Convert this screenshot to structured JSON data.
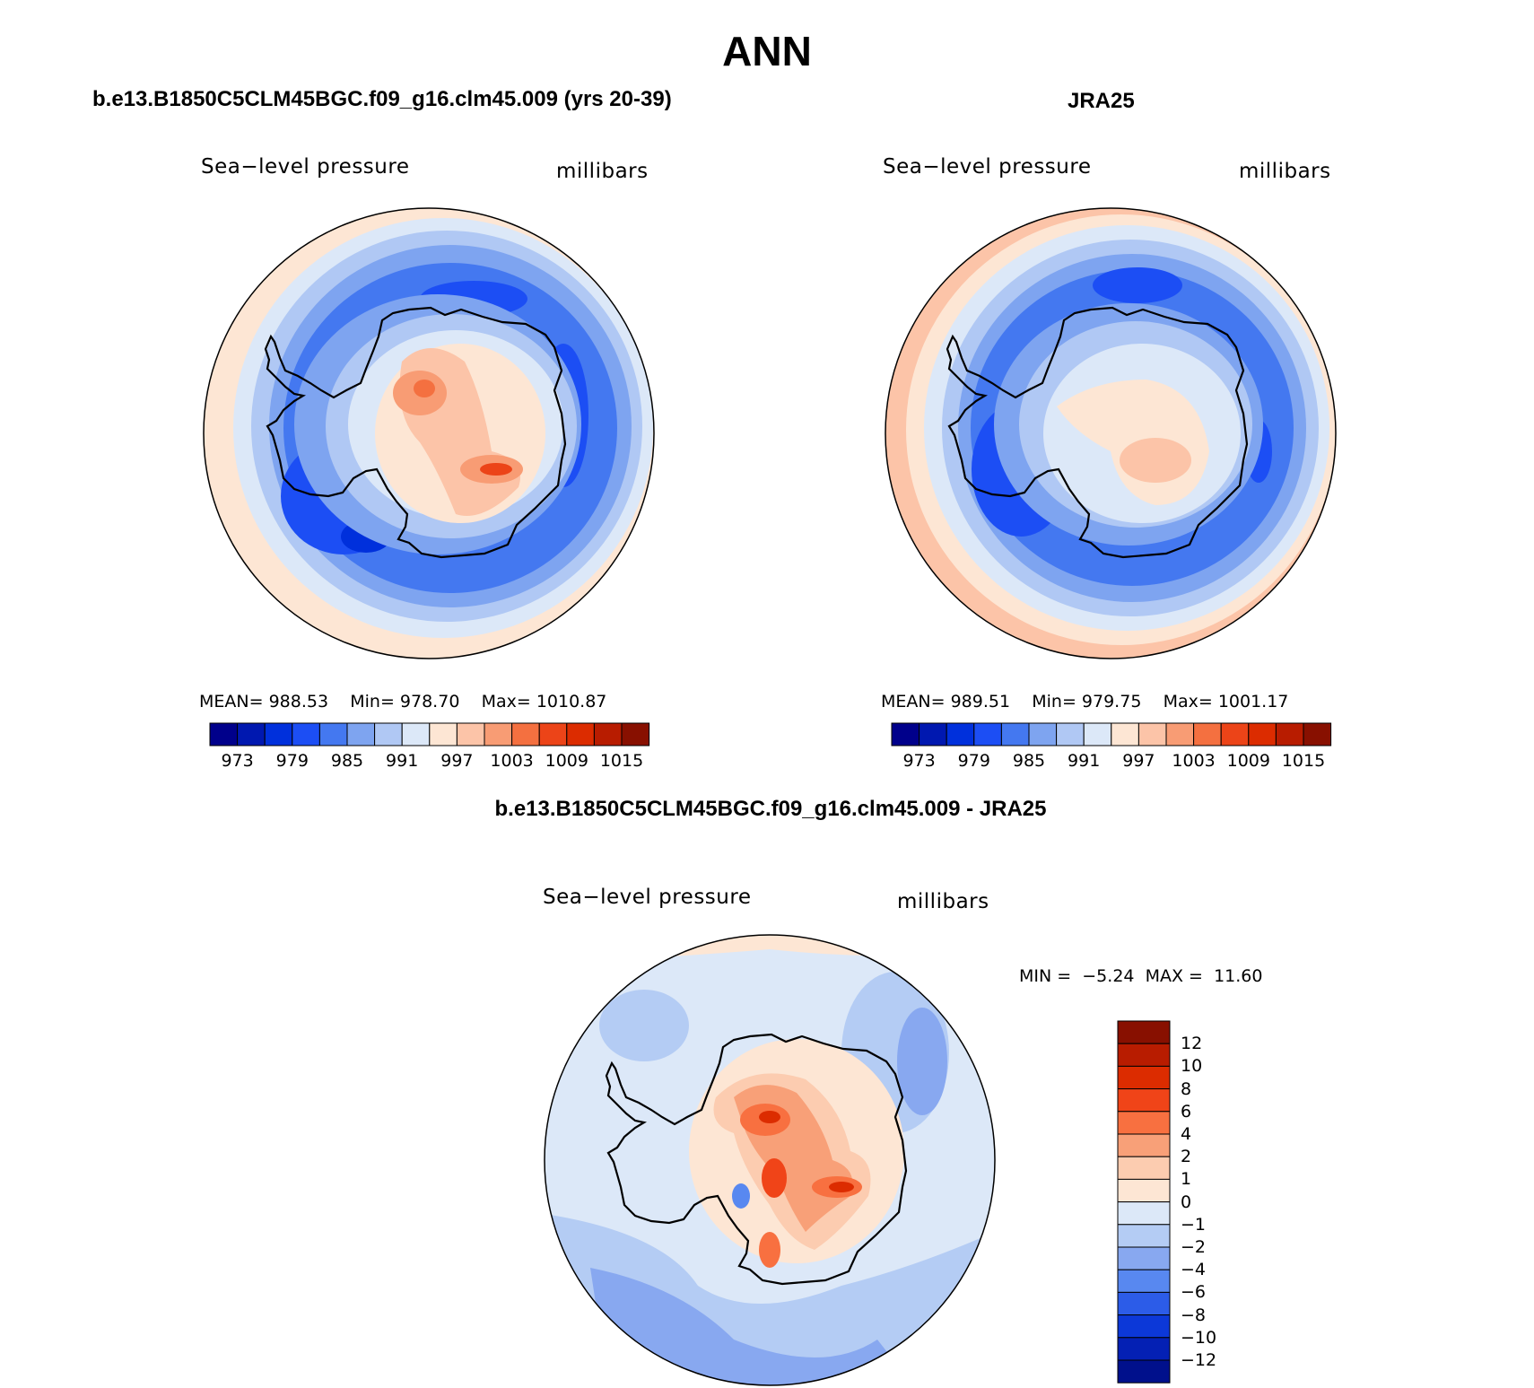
{
  "main_title": "ANN",
  "palette_abs": [
    "#00008b",
    "#0018b0",
    "#0030dc",
    "#1c4ef4",
    "#4478f0",
    "#7ea4f0",
    "#b0c8f4",
    "#dce8f8",
    "#fde6d4",
    "#fcc4a8",
    "#f89c74",
    "#f47040",
    "#ec4418",
    "#dc2c00",
    "#b81c00",
    "#881000"
  ],
  "abs_ticks": [
    "973",
    "979",
    "985",
    "991",
    "997",
    "1003",
    "1009",
    "1015"
  ],
  "panels": [
    {
      "title": "b.e13.B1850C5CLM45BGC.f09_g16.clm45.009 (yrs 20-39)",
      "variable": "Sea−level pressure",
      "units": "millibars",
      "mean_label": "MEAN=",
      "mean": "988.53",
      "min_label": "Min=",
      "min": "978.70",
      "max_label": "Max=",
      "max": "1010.87"
    },
    {
      "title": "JRA25",
      "variable": "Sea−level pressure",
      "units": "millibars",
      "mean_label": "MEAN=",
      "mean": "989.51",
      "min_label": "Min=",
      "min": "979.75",
      "max_label": "Max=",
      "max": "1001.17"
    }
  ],
  "diff": {
    "title": "b.e13.B1850C5CLM45BGC.f09_g16.clm45.009 - JRA25",
    "variable": "Sea−level pressure",
    "units": "millibars",
    "min_label": "MIN =",
    "min": "−5.24",
    "max_label": "MAX =",
    "max": "11.60",
    "palette": [
      "#881000",
      "#b81c00",
      "#dc2c00",
      "#f04418",
      "#f87040",
      "#f8a078",
      "#fcccb0",
      "#fde6d4",
      "#dce8f8",
      "#b4ccf4",
      "#88a8f0",
      "#5888f0",
      "#2c5ce8",
      "#0c38d8",
      "#0420b4",
      "#00108c"
    ],
    "ticks": [
      "12",
      "10",
      "8",
      "6",
      "4",
      "2",
      "1",
      "0",
      "−1",
      "−2",
      "−4",
      "−6",
      "−8",
      "−10",
      "−12"
    ]
  }
}
